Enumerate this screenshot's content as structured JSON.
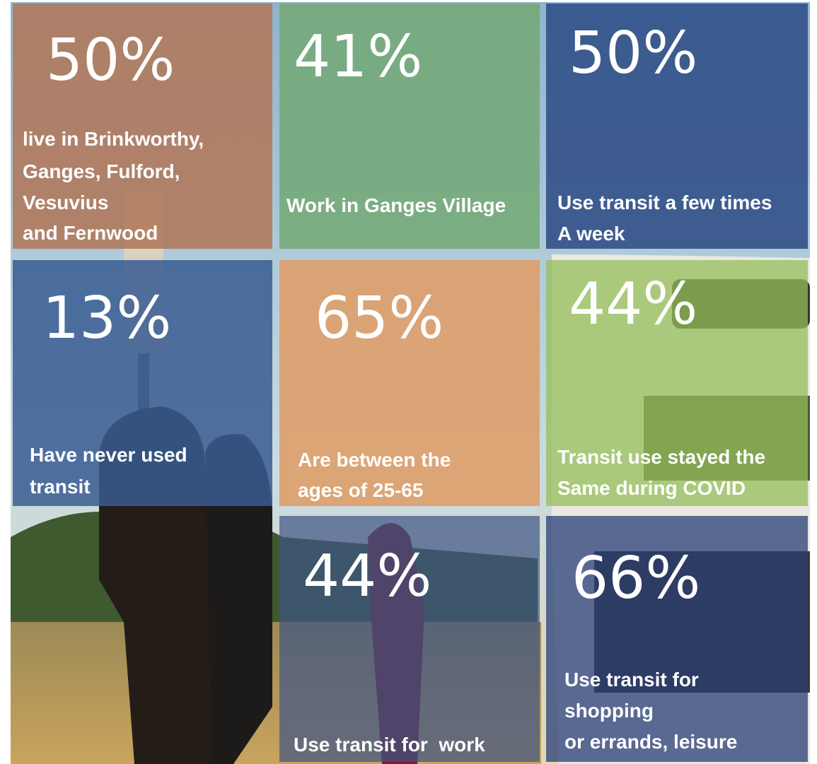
{
  "tiles": [
    {
      "stat": "50%",
      "label": [
        "live in Brinkworthy,",
        "Ganges, Fulford,",
        "Vesuvius",
        "and Fernwood"
      ]
    },
    {
      "stat": "41%",
      "label": [
        "Work in Ganges Village"
      ]
    },
    {
      "stat": "50%",
      "label": [
        "Use transit a few times",
        "A week"
      ]
    },
    {
      "stat": "13%",
      "label": [
        "Have never used",
        "transit"
      ]
    },
    {
      "stat": "65%",
      "label": [
        "Are between the",
        "ages of 25-65"
      ]
    },
    {
      "stat": "44%",
      "label": [
        "Transit use stayed the",
        "Same during COVID"
      ]
    },
    {
      "stat": "44%",
      "label": [
        "Use transit for  work"
      ]
    },
    {
      "stat": "66%",
      "label": [
        "Use transit for",
        "shopping",
        "or errands, leisure"
      ]
    }
  ]
}
